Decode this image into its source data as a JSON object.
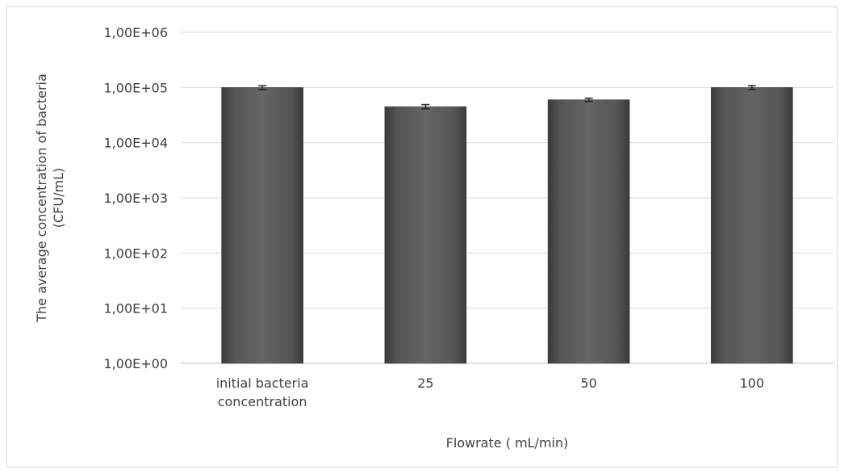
{
  "chart_data": {
    "type": "bar",
    "scale": "log10",
    "categories": [
      [
        "initial bacteria",
        "concentration"
      ],
      [
        "25"
      ],
      [
        "50"
      ],
      [
        "100"
      ]
    ],
    "series": [
      {
        "values": [
          100000,
          45000,
          60000,
          100000
        ],
        "errors": [
          8000,
          4000,
          4000,
          8000
        ]
      }
    ],
    "ylim": [
      1,
      1000000
    ],
    "ytick_values": [
      1,
      10,
      100,
      1000,
      10000,
      100000,
      1000000
    ],
    "ytick_labels": [
      "1,00E+00",
      "1,00E+01",
      "1,00E+02",
      "1,00E+03",
      "1,00E+04",
      "1,00E+05",
      "1,00E+06"
    ],
    "xlabel": "Flowrate ( mL/min)",
    "ylabel": [
      "The average concentration of bacteria",
      "(CFU/mL)"
    ],
    "grid": "horizontal",
    "legend": "none",
    "bar_color": "#595959"
  }
}
